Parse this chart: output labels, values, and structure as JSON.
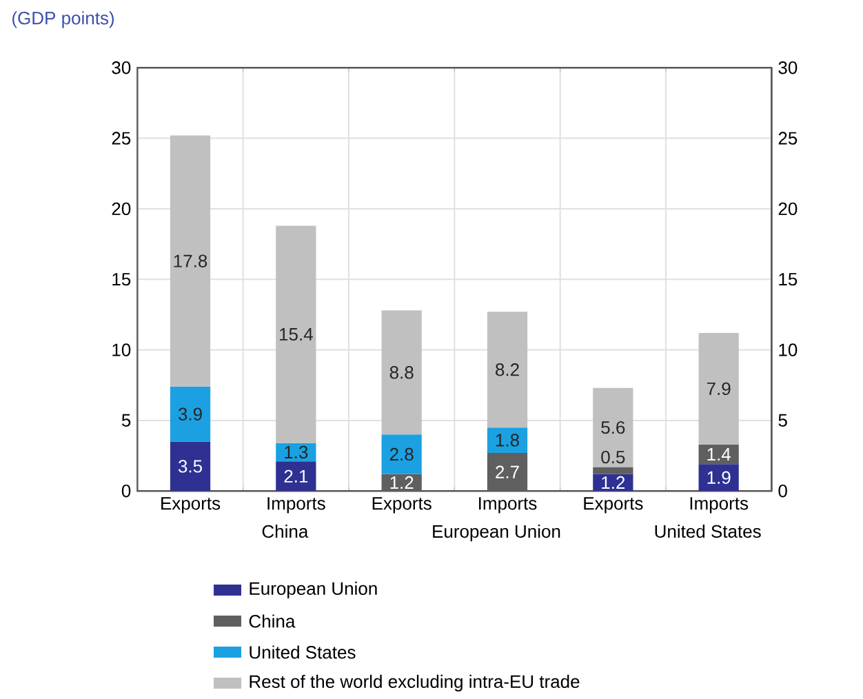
{
  "chart_data": {
    "type": "bar",
    "stacked": true,
    "ylabel": "(GDP points)",
    "categories": [
      "Exports",
      "Imports",
      "Exports",
      "Imports",
      "Exports",
      "Imports"
    ],
    "annotations": [
      "China",
      "European Union",
      "United States"
    ],
    "series": [
      {
        "name": "European Union",
        "color": "#2e3192",
        "values": [
          3.5,
          2.1,
          null,
          null,
          1.2,
          1.9
        ]
      },
      {
        "name": "China",
        "color": "#5f5f5f",
        "values": [
          null,
          null,
          1.2,
          2.7,
          0.5,
          1.4
        ]
      },
      {
        "name": "United States",
        "color": "#1ba1e2",
        "values": [
          3.9,
          1.3,
          2.8,
          1.8,
          null,
          null
        ]
      },
      {
        "name": "Rest of the world excluding intra-EU trade",
        "color": "#c0c0c0",
        "values": [
          17.8,
          15.4,
          8.8,
          8.2,
          5.6,
          7.9
        ]
      }
    ],
    "ylim": [
      0,
      30
    ],
    "yticks": [
      0,
      5,
      10,
      15,
      20,
      25,
      30
    ],
    "y2lim": [
      0,
      30
    ],
    "y2ticks": [
      0,
      5,
      10,
      15,
      20,
      25,
      30
    ],
    "data_labels": true,
    "grid": true,
    "legend": "bottom"
  }
}
